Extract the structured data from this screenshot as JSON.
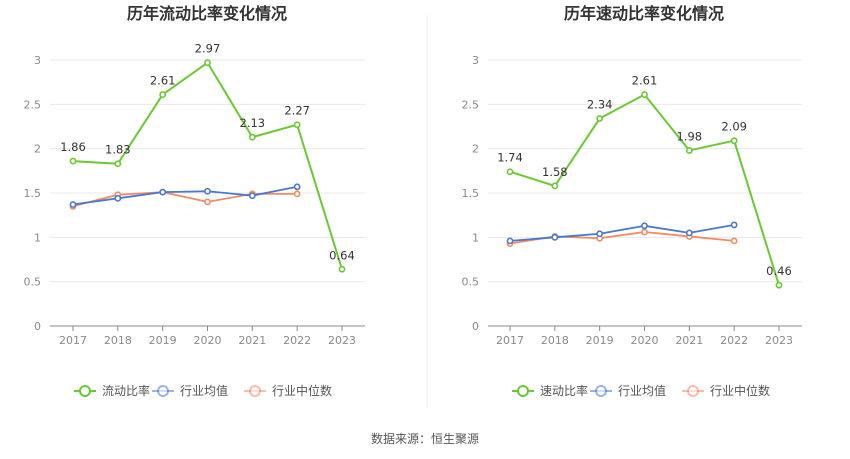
{
  "source": "数据来源：恒生聚源",
  "colors": {
    "main": "#6ac830",
    "avg": "#4a78cf",
    "median": "#f28a62",
    "grid": "#e8e8e8",
    "axis": "#888888",
    "divider": "#eeeeee"
  },
  "chart_data": [
    {
      "type": "line",
      "title": "历年流动比率变化情况",
      "categories": [
        "2017",
        "2018",
        "2019",
        "2020",
        "2021",
        "2022",
        "2023"
      ],
      "ylim": [
        0,
        3
      ],
      "yticks": [
        "0",
        "0.5",
        "1",
        "1.5",
        "2",
        "2.5",
        "3"
      ],
      "legend_position": "bottom",
      "grid": true,
      "series": [
        {
          "name": "流动比率",
          "values": [
            1.86,
            1.83,
            2.61,
            2.97,
            2.13,
            2.27,
            0.64
          ],
          "labels": [
            "1.86",
            "1.83",
            "2.61",
            "2.97",
            "2.13",
            "2.27",
            "0.64"
          ],
          "color": "#6ac830"
        },
        {
          "name": "行业均值",
          "values": [
            1.37,
            1.44,
            1.51,
            1.52,
            1.47,
            1.57,
            null
          ],
          "color": "#4a78cf"
        },
        {
          "name": "行业中位数",
          "values": [
            1.35,
            1.48,
            1.51,
            1.4,
            1.49,
            1.49,
            null
          ],
          "color": "#f28a62"
        }
      ]
    },
    {
      "type": "line",
      "title": "历年速动比率变化情况",
      "categories": [
        "2017",
        "2018",
        "2019",
        "2020",
        "2021",
        "2022",
        "2023"
      ],
      "ylim": [
        0,
        3
      ],
      "yticks": [
        "0",
        "0.5",
        "1",
        "1.5",
        "2",
        "2.5",
        "3"
      ],
      "legend_position": "bottom",
      "grid": true,
      "series": [
        {
          "name": "速动比率",
          "values": [
            1.74,
            1.58,
            2.34,
            2.61,
            1.98,
            2.09,
            0.46
          ],
          "labels": [
            "1.74",
            "1.58",
            "2.34",
            "2.61",
            "1.98",
            "2.09",
            "0.46"
          ],
          "color": "#6ac830"
        },
        {
          "name": "行业均值",
          "values": [
            0.96,
            1.0,
            1.04,
            1.13,
            1.05,
            1.14,
            null
          ],
          "color": "#4a78cf"
        },
        {
          "name": "行业中位数",
          "values": [
            0.93,
            1.01,
            0.99,
            1.06,
            1.01,
            0.96,
            null
          ],
          "color": "#f28a62"
        }
      ]
    }
  ]
}
